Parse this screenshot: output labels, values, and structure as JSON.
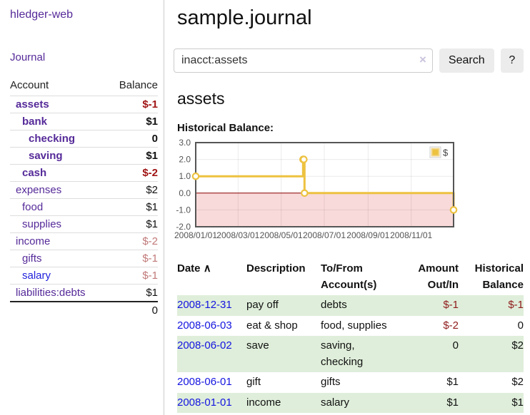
{
  "app": {
    "title": "hledger-web"
  },
  "sidebar": {
    "journal_link": "Journal",
    "header": {
      "account": "Account",
      "balance": "Balance"
    },
    "accounts": [
      {
        "name": "assets",
        "balance": "$-1",
        "level": 0
      },
      {
        "name": "bank",
        "balance": "$1",
        "level": 1
      },
      {
        "name": "checking",
        "balance": "0",
        "level": 2
      },
      {
        "name": "saving",
        "balance": "$1",
        "level": 2
      },
      {
        "name": "cash",
        "balance": "$-2",
        "level": 1
      },
      {
        "name": "expenses",
        "balance": "$2",
        "level": 0
      },
      {
        "name": "food",
        "balance": "$1",
        "level": 1
      },
      {
        "name": "supplies",
        "balance": "$1",
        "level": 1
      },
      {
        "name": "income",
        "balance": "$-2",
        "level": 0
      },
      {
        "name": "gifts",
        "balance": "$-1",
        "level": 1
      },
      {
        "name": "salary",
        "balance": "$-1",
        "level": 1
      },
      {
        "name": "liabilities:debts",
        "balance": "$1",
        "level": 0
      }
    ],
    "total": "0"
  },
  "main": {
    "title": "sample.journal"
  },
  "search": {
    "value": "inacct:assets",
    "clear_icon": "×",
    "button_label": "Search",
    "help_label": "?"
  },
  "account_page": {
    "heading": "assets",
    "chart_title": "Historical Balance:"
  },
  "chart_data": {
    "type": "line",
    "step": true,
    "title": "Historical Balance",
    "series": [
      {
        "name": "$",
        "color": "#edc240",
        "points": [
          [
            "2008-01-01",
            1
          ],
          [
            "2008-06-01",
            2
          ],
          [
            "2008-06-02",
            2
          ],
          [
            "2008-06-03",
            0
          ],
          [
            "2008-12-31",
            -1
          ]
        ]
      }
    ],
    "x_ticks": [
      "2008/01/01",
      "2008/03/01",
      "2008/05/01",
      "2008/07/01",
      "2008/09/01",
      "2008/11/01"
    ],
    "y_ticks": [
      3.0,
      2.0,
      1.0,
      0.0,
      -1.0,
      -2.0
    ],
    "xlim": [
      "2008-01-01",
      "2008-12-31"
    ],
    "ylim": [
      -2,
      3
    ],
    "grid": true,
    "legend": {
      "label": "$",
      "position": "top-right"
    },
    "colors": {
      "negative_region": "#f9dada",
      "zero_line": "#8b0000",
      "border": "#555555",
      "tick_text": "#545454"
    }
  },
  "register": {
    "columns": [
      "Date",
      "Description",
      "To/From Account(s)",
      "Amount Out/In",
      "Historical Balance"
    ],
    "sort_icon": "∧",
    "rows": [
      {
        "date": "2008-12-31",
        "description": "pay off",
        "accounts": "debts",
        "amount": "$-1",
        "balance": "$-1"
      },
      {
        "date": "2008-06-03",
        "description": "eat & shop",
        "accounts": "food, supplies",
        "amount": "$-2",
        "balance": "0"
      },
      {
        "date": "2008-06-02",
        "description": "save",
        "accounts": "saving, checking",
        "amount": "0",
        "balance": "$2"
      },
      {
        "date": "2008-06-01",
        "description": "gift",
        "accounts": "gifts",
        "amount": "$1",
        "balance": "$2"
      },
      {
        "date": "2008-01-01",
        "description": "income",
        "accounts": "salary",
        "amount": "$1",
        "balance": "$1"
      }
    ]
  }
}
